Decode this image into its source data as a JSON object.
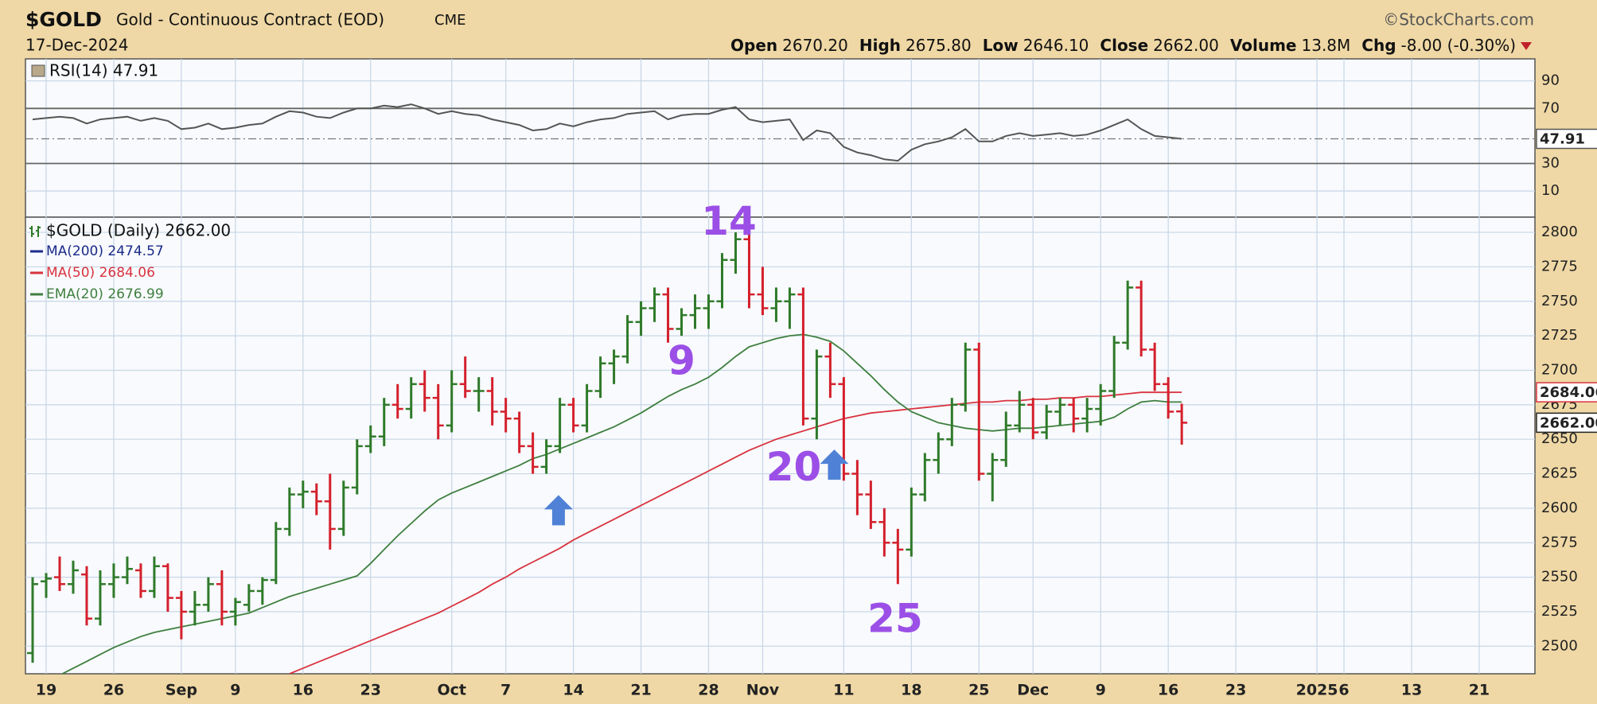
{
  "header": {
    "symbol": "$GOLD",
    "name": "Gold - Continuous Contract (EOD)",
    "exchange": "CME",
    "copyright": "©StockCharts.com",
    "date": "17-Dec-2024",
    "quote": [
      {
        "label": "Open",
        "value": "2670.20"
      },
      {
        "label": "High",
        "value": "2675.80"
      },
      {
        "label": "Low",
        "value": "2646.10"
      },
      {
        "label": "Close",
        "value": "2662.00"
      },
      {
        "label": "Volume",
        "value": "13.8M"
      },
      {
        "label": "Chg",
        "value": "-8.00 (-0.30%)"
      }
    ]
  },
  "chart_data": [
    {
      "type": "line",
      "ylim": [
        -9,
        106
      ],
      "yticks": [
        10,
        30,
        70,
        90
      ],
      "reference_lines": [
        30,
        70
      ],
      "grid": true,
      "series": [
        {
          "name": "RSI(14) 47.91",
          "color": "#555555",
          "value_box": "47.91",
          "values": [
            62,
            63,
            64,
            63,
            59,
            62,
            63,
            64,
            61,
            63,
            61,
            55,
            56,
            59,
            55,
            56,
            58,
            59,
            64,
            68,
            67,
            64,
            63,
            67,
            70,
            70,
            72,
            71,
            73,
            70,
            66,
            68,
            66,
            65,
            62,
            60,
            58,
            54,
            55,
            59,
            57,
            60,
            62,
            63,
            66,
            67,
            68,
            62,
            65,
            66,
            66,
            69,
            71,
            62,
            60,
            61,
            62,
            47,
            54,
            52,
            42,
            38,
            36,
            33,
            32,
            40,
            44,
            46,
            49,
            55,
            46,
            46,
            50,
            52,
            50,
            51,
            52,
            50,
            51,
            54,
            58,
            62,
            55,
            50,
            49,
            47.91,
            null,
            null,
            null,
            null,
            null,
            null,
            null,
            null,
            null,
            null,
            null,
            null,
            null,
            null,
            null,
            null,
            null,
            null,
            null,
            null,
            null,
            null
          ]
        }
      ]
    },
    {
      "type": "ohlc",
      "ylim": [
        2480,
        2811
      ],
      "yticks": [
        2500,
        2525,
        2550,
        2575,
        2600,
        2625,
        2650,
        2675,
        2700,
        2725,
        2750,
        2775,
        2800
      ],
      "grid": true,
      "categories": [
        null,
        "19",
        null,
        null,
        null,
        null,
        "26",
        null,
        null,
        null,
        null,
        "Sep",
        null,
        null,
        null,
        "9",
        null,
        null,
        null,
        null,
        "16",
        null,
        null,
        null,
        null,
        "23",
        null,
        null,
        null,
        null,
        null,
        "Oct",
        null,
        null,
        null,
        "7",
        null,
        null,
        null,
        null,
        "14",
        null,
        null,
        null,
        null,
        "21",
        null,
        null,
        null,
        null,
        "28",
        null,
        null,
        null,
        "Nov",
        null,
        null,
        null,
        null,
        null,
        "11",
        null,
        null,
        null,
        null,
        "18",
        null,
        null,
        null,
        null,
        "25",
        null,
        null,
        null,
        "Dec",
        null,
        null,
        null,
        null,
        "9",
        null,
        null,
        null,
        null,
        "16",
        null,
        null,
        null,
        null,
        "23",
        null,
        null,
        null,
        null,
        null,
        "2025",
        null,
        "6",
        null,
        null,
        null,
        null,
        "13",
        null,
        null,
        null,
        null,
        "21"
      ],
      "ohlc": {
        "name": "$GOLD (Daily) 2662.00",
        "up_color": "#2f7a2a",
        "down_color": "#d4202c",
        "value_box": "2662.00",
        "open": [
          2495,
          2547,
          2550,
          2545,
          2552,
          2520,
          2545,
          2550,
          2555,
          2540,
          2558,
          2535,
          2525,
          2530,
          2545,
          2525,
          2530,
          2540,
          2548,
          2585,
          2610,
          2612,
          2605,
          2585,
          2615,
          2645,
          2652,
          2675,
          2672,
          2690,
          2680,
          2660,
          2690,
          2685,
          2685,
          2670,
          2665,
          2645,
          2630,
          2645,
          2675,
          2660,
          2685,
          2705,
          2710,
          2735,
          2745,
          2755,
          2730,
          2740,
          2745,
          2750,
          2780,
          2795,
          2755,
          2745,
          2750,
          2755,
          2665,
          2710,
          2690,
          2625,
          2610,
          2590,
          2575,
          2570,
          2610,
          2635,
          2650,
          2675,
          2715,
          2625,
          2635,
          2660,
          2675,
          2655,
          2670,
          2675,
          2665,
          2672,
          2685,
          2720,
          2760,
          2715,
          2690,
          2670.2,
          null,
          null,
          null,
          null,
          null,
          null,
          null,
          null,
          null,
          null,
          null,
          null,
          null,
          null,
          null,
          null,
          null,
          null,
          null,
          null,
          null,
          null
        ],
        "high": [
          2550,
          2553,
          2565,
          2562,
          2558,
          2555,
          2560,
          2565,
          2560,
          2565,
          2560,
          2540,
          2540,
          2550,
          2555,
          2535,
          2545,
          2550,
          2590,
          2615,
          2620,
          2618,
          2625,
          2620,
          2650,
          2660,
          2680,
          2690,
          2695,
          2700,
          2690,
          2700,
          2710,
          2695,
          2695,
          2680,
          2670,
          2655,
          2650,
          2680,
          2680,
          2690,
          2710,
          2715,
          2740,
          2750,
          2760,
          2760,
          2745,
          2755,
          2755,
          2785,
          2800,
          2800,
          2775,
          2760,
          2760,
          2760,
          2715,
          2720,
          2695,
          2635,
          2620,
          2600,
          2585,
          2615,
          2640,
          2655,
          2680,
          2720,
          2720,
          2640,
          2670,
          2685,
          2680,
          2675,
          2680,
          2680,
          2680,
          2690,
          2725,
          2765,
          2765,
          2720,
          2695,
          2675.8,
          null,
          null,
          null,
          null,
          null,
          null,
          null,
          null,
          null,
          null,
          null,
          null,
          null,
          null,
          null,
          null,
          null,
          null,
          null,
          null,
          null,
          null
        ],
        "low": [
          2488,
          2535,
          2540,
          2538,
          2515,
          2515,
          2535,
          2545,
          2535,
          2535,
          2525,
          2505,
          2515,
          2525,
          2515,
          2515,
          2525,
          2530,
          2545,
          2580,
          2600,
          2595,
          2570,
          2580,
          2610,
          2640,
          2645,
          2665,
          2665,
          2670,
          2650,
          2655,
          2680,
          2670,
          2660,
          2655,
          2640,
          2625,
          2625,
          2640,
          2655,
          2655,
          2680,
          2690,
          2705,
          2725,
          2735,
          2720,
          2725,
          2730,
          2730,
          2745,
          2770,
          2745,
          2740,
          2735,
          2730,
          2660,
          2650,
          2680,
          2620,
          2595,
          2585,
          2565,
          2545,
          2565,
          2605,
          2625,
          2645,
          2670,
          2620,
          2605,
          2630,
          2655,
          2650,
          2650,
          2660,
          2655,
          2655,
          2660,
          2680,
          2715,
          2710,
          2685,
          2665,
          2646.1,
          null,
          null,
          null,
          null,
          null,
          null,
          null,
          null,
          null,
          null,
          null,
          null,
          null,
          null,
          null,
          null,
          null,
          null,
          null,
          null,
          null,
          null
        ],
        "close": [
          2545,
          2549,
          2545,
          2555,
          2520,
          2545,
          2550,
          2556,
          2540,
          2558,
          2535,
          2525,
          2530,
          2545,
          2525,
          2532,
          2540,
          2548,
          2585,
          2610,
          2612,
          2605,
          2585,
          2615,
          2645,
          2652,
          2675,
          2672,
          2690,
          2680,
          2660,
          2690,
          2685,
          2685,
          2670,
          2665,
          2645,
          2630,
          2645,
          2675,
          2660,
          2685,
          2705,
          2710,
          2735,
          2745,
          2755,
          2730,
          2740,
          2745,
          2750,
          2780,
          2795,
          2755,
          2745,
          2750,
          2755,
          2665,
          2710,
          2690,
          2625,
          2610,
          2590,
          2575,
          2570,
          2610,
          2635,
          2650,
          2675,
          2715,
          2625,
          2635,
          2660,
          2675,
          2655,
          2670,
          2675,
          2665,
          2672,
          2685,
          2720,
          2760,
          2715,
          2690,
          2670,
          2662,
          null,
          null,
          null,
          null,
          null,
          null,
          null,
          null,
          null,
          null,
          null,
          null,
          null,
          null,
          null,
          null,
          null,
          null,
          null,
          null,
          null,
          null
        ]
      },
      "series": [
        {
          "name": "MA(200) 2474.57",
          "color": "#1a2a8a"
        },
        {
          "name": "MA(50) 2684.06",
          "color": "#d9333f",
          "value_box": "2684.06",
          "values": [
            null,
            null,
            null,
            null,
            null,
            null,
            null,
            null,
            null,
            null,
            null,
            null,
            null,
            null,
            null,
            null,
            null,
            null,
            null,
            2480,
            2484,
            2488,
            2492,
            2496,
            2500,
            2504,
            2508,
            2512,
            2516,
            2520,
            2524,
            2529,
            2534,
            2539,
            2545,
            2550,
            2556,
            2561,
            2566,
            2571,
            2577,
            2582,
            2587,
            2592,
            2597,
            2602,
            2607,
            2612,
            2617,
            2622,
            2627,
            2632,
            2637,
            2642,
            2646,
            2650,
            2653,
            2656,
            2659,
            2662,
            2665,
            2667,
            2669,
            2670,
            2671,
            2672,
            2673,
            2674,
            2675,
            2676,
            2677,
            2677,
            2678,
            2678,
            2679,
            2679,
            2680,
            2680,
            2681,
            2681,
            2682,
            2683,
            2684,
            2684,
            2684,
            2684.06,
            null,
            null,
            null,
            null,
            null,
            null,
            null,
            null,
            null,
            null,
            null,
            null,
            null,
            null,
            null,
            null,
            null,
            null,
            null,
            null,
            null,
            null
          ]
        },
        {
          "name": "EMA(20) 2676.99",
          "color": "#3f7f3f",
          "values": [
            null,
            null,
            2479,
            2484,
            2489,
            2494,
            2499,
            2503,
            2507,
            2510,
            2512,
            2514,
            2516,
            2518,
            2520,
            2522,
            2524,
            2528,
            2532,
            2536,
            2539,
            2542,
            2545,
            2548,
            2551,
            2560,
            2570,
            2580,
            2589,
            2598,
            2606,
            2611,
            2615,
            2619,
            2623,
            2627,
            2631,
            2636,
            2639,
            2643,
            2647,
            2651,
            2655,
            2659,
            2664,
            2669,
            2675,
            2681,
            2686,
            2690,
            2695,
            2702,
            2710,
            2717,
            2720,
            2723,
            2725,
            2726,
            2724,
            2721,
            2714,
            2705,
            2696,
            2686,
            2677,
            2670,
            2666,
            2662,
            2660,
            2658,
            2657,
            2656,
            2657,
            2658,
            2658,
            2659,
            2660,
            2661,
            2662,
            2663,
            2666,
            2672,
            2677,
            2678,
            2677,
            2676.99,
            null,
            null,
            null,
            null,
            null,
            null,
            null,
            null,
            null,
            null,
            null,
            null,
            null,
            null,
            null,
            null,
            null,
            null,
            null,
            null,
            null,
            null
          ]
        }
      ],
      "annotations": [
        "14",
        "9",
        "20",
        "25"
      ]
    }
  ]
}
